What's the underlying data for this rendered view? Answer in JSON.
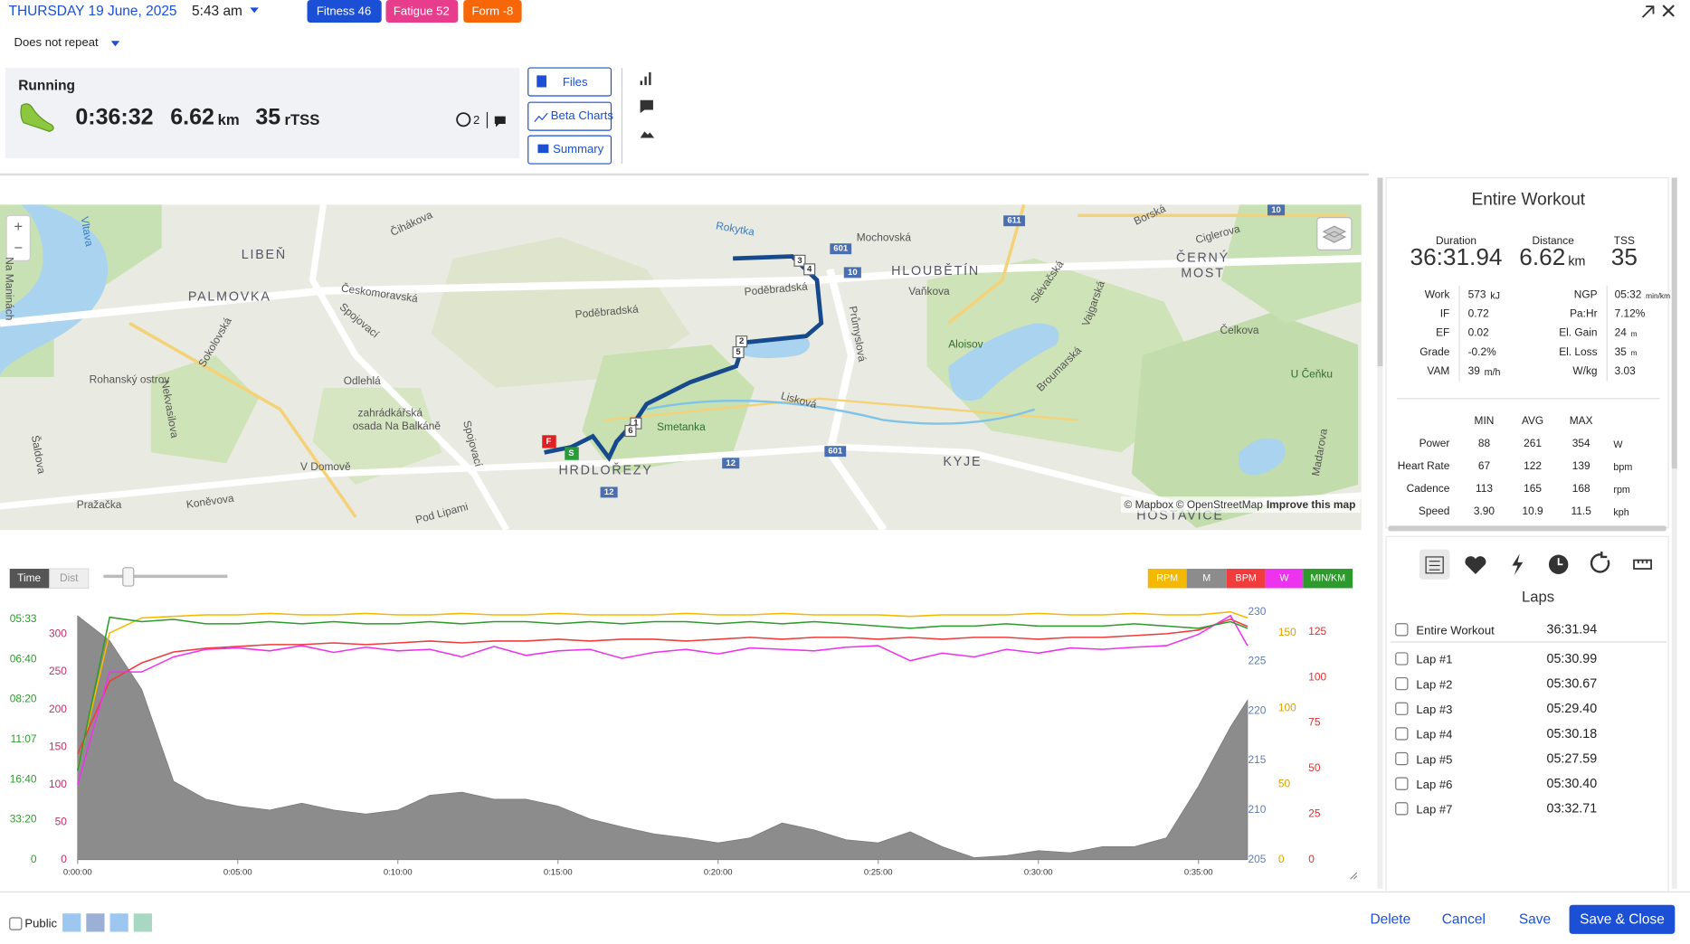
{
  "header": {
    "date": "THURSDAY 19 June, 2025",
    "time": "5:43 am",
    "badges": [
      "Fitness 46",
      "Fatigue 52",
      "Form -8"
    ],
    "repeat": "Does not repeat"
  },
  "summary": {
    "sport": "Running",
    "duration": "0:36:32",
    "distance": "6.62",
    "distance_unit": "km",
    "tss": "35",
    "tss_unit": "rTSS",
    "comments": "2"
  },
  "buttons": [
    "Files",
    "Beta Charts",
    "Summary"
  ],
  "map": {
    "labels": [
      "LIBEŇ",
      "PALMOVKA",
      "HLOUBĚTÍN",
      "ČERNÝ",
      "MOST",
      "HRDLOŘEZY",
      "KYJE",
      "HOSTAVICE",
      "Rohanský ostrov",
      "zahrádkářská",
      "osada Na Balkáně",
      "Smetanka",
      "Aloisov",
      "U Čeňku",
      "Českomoravská",
      "Poděbradská",
      "Poděbradská",
      "Spojovací",
      "Sokolovská",
      "Odlehlá",
      "Lisková",
      "Průmyslová",
      "Mochovská",
      "Vaňkova",
      "Slévačská",
      "Vajgarská",
      "Broumarská",
      "Čelkova",
      "Ciglerova",
      "Borská",
      "Rokytka",
      "Vltava",
      "V Domově",
      "Koněvova",
      "Pražačka",
      "Spojovací",
      "Pod Lipami",
      "Čihákova",
      "Madarova",
      "Na Maninách",
      "Šaldova",
      "Nekvasilova",
      "601",
      "10",
      "12",
      "611",
      "10",
      "12",
      "601"
    ],
    "markers": [
      "3",
      "4",
      "2",
      "5",
      "1",
      "6",
      "F",
      "S"
    ],
    "zoom": [
      "+",
      "−"
    ],
    "attribution": [
      "© Mapbox",
      "© OpenStreetMap",
      "Improve this map"
    ]
  },
  "chart_controls": {
    "toggle": [
      "Time",
      "Dist"
    ]
  },
  "chart_data": {
    "type": "line",
    "x": [
      0,
      60,
      120,
      180,
      240,
      300,
      360,
      420,
      480,
      540,
      600,
      660,
      720,
      780,
      840,
      900,
      960,
      1020,
      1080,
      1140,
      1200,
      1260,
      1320,
      1380,
      1440,
      1500,
      1560,
      1620,
      1680,
      1740,
      1800,
      1860,
      1920,
      1980,
      2040,
      2100,
      2160,
      2192
    ],
    "xlim": [
      0,
      2192
    ],
    "xticks": [
      {
        "value": 0,
        "label": "0:00:00"
      },
      {
        "value": 300,
        "label": "0:05:00"
      },
      {
        "value": 600,
        "label": "0:10:00"
      },
      {
        "value": 900,
        "label": "0:15:00"
      },
      {
        "value": 1200,
        "label": "0:20:00"
      },
      {
        "value": 1500,
        "label": "0:25:00"
      },
      {
        "value": 1800,
        "label": "0:30:00"
      },
      {
        "value": 2100,
        "label": "0:35:00"
      }
    ],
    "series": [
      {
        "name": "RPM",
        "color": "#f5b800",
        "ylim": [
          0,
          164
        ],
        "yticks": [
          0,
          50,
          100,
          150
        ],
        "values": [
          60,
          150,
          160,
          161,
          162,
          162,
          163,
          162,
          162,
          163,
          162,
          162,
          163,
          162,
          162,
          163,
          162,
          162,
          162,
          163,
          162,
          162,
          163,
          162,
          162,
          162,
          161,
          162,
          162,
          162,
          163,
          162,
          162,
          163,
          162,
          162,
          164,
          160
        ]
      },
      {
        "name": "M",
        "color": "#8c8c8c",
        "fill": true,
        "ylim": [
          205,
          230
        ],
        "yticks": [
          205,
          210,
          215,
          220,
          225,
          230
        ],
        "values": [
          229.6,
          227.1,
          222.2,
          212.9,
          211.1,
          210.4,
          210.0,
          210.7,
          210.0,
          209.6,
          210.0,
          211.5,
          211.8,
          211.1,
          211.1,
          210.4,
          209.1,
          208.3,
          207.6,
          207.2,
          206.7,
          207.2,
          208.7,
          208.0,
          207.0,
          206.7,
          207.8,
          206.3,
          205.2,
          205.4,
          205.9,
          205.7,
          206.3,
          206.3,
          207.2,
          212.4,
          218.4,
          221.1
        ]
      },
      {
        "name": "BPM",
        "color": "#f03c3c",
        "ylim": [
          0,
          136
        ],
        "yticks": [
          0,
          25,
          50,
          75,
          100,
          125
        ],
        "values": [
          58,
          98,
          108,
          114,
          116,
          117,
          118,
          118,
          119,
          118,
          119,
          120,
          119,
          120,
          120,
          121,
          120,
          121,
          121,
          120,
          121,
          122,
          121,
          122,
          122,
          121,
          122,
          121,
          122,
          122,
          121,
          122,
          122,
          123,
          124,
          126,
          132,
          128
        ]
      },
      {
        "name": "W",
        "color": "#ee33ee",
        "ylim": [
          0,
          330
        ],
        "yticks": [
          0,
          50,
          100,
          150,
          200,
          250,
          300
        ],
        "values": [
          100,
          250,
          250,
          270,
          280,
          282,
          278,
          285,
          276,
          283,
          278,
          280,
          270,
          284,
          272,
          278,
          280,
          268,
          276,
          280,
          274,
          282,
          280,
          278,
          283,
          285,
          265,
          275,
          270,
          280,
          275,
          282,
          280,
          283,
          285,
          300,
          325,
          285
        ]
      },
      {
        "name": "MIN/KM",
        "color": "#2e9a2e",
        "ylim": [
          0,
          11.14
        ],
        "yticks": [
          {
            "value": 10.8,
            "label": "05:33"
          },
          {
            "value": 9,
            "label": "06:40"
          },
          {
            "value": 7.2,
            "label": "08:20"
          },
          {
            "value": 5.4,
            "label": "11:07"
          },
          {
            "value": 3.6,
            "label": "16:40"
          },
          {
            "value": 1.8,
            "label": "33:20"
          },
          0
        ],
        "values": [
          4.0,
          10.9,
          10.7,
          10.8,
          10.6,
          10.6,
          10.7,
          10.6,
          10.7,
          10.6,
          10.6,
          10.7,
          10.6,
          10.7,
          10.7,
          10.6,
          10.7,
          10.6,
          10.7,
          10.7,
          10.6,
          10.7,
          10.6,
          10.7,
          10.6,
          10.5,
          10.4,
          10.5,
          10.5,
          10.6,
          10.5,
          10.5,
          10.5,
          10.6,
          10.5,
          10.4,
          10.7,
          10.4
        ]
      }
    ]
  },
  "stats": {
    "title": "Entire Workout",
    "headline": [
      {
        "label": "Duration",
        "value": "36:31.94"
      },
      {
        "label": "Distance",
        "value": "6.62",
        "unit": "km"
      },
      {
        "label": "TSS",
        "value": "35"
      }
    ],
    "left": [
      {
        "label": "Work",
        "value": "573",
        "unit": "kJ"
      },
      {
        "label": "IF",
        "value": "0.72"
      },
      {
        "label": "EF",
        "value": "0.02"
      },
      {
        "label": "Grade",
        "value": "-0.2%"
      },
      {
        "label": "VAM",
        "value": "39",
        "unit": "m/h"
      }
    ],
    "right": [
      {
        "label": "NGP",
        "value": "05:32",
        "unit": "min/km"
      },
      {
        "label": "Pa:Hr",
        "value": "7.12%"
      },
      {
        "label": "El. Gain",
        "value": "24",
        "unit": "m"
      },
      {
        "label": "El. Loss",
        "value": "35",
        "unit": "m"
      },
      {
        "label": "W/kg",
        "value": "3.03"
      }
    ],
    "range_header": [
      "MIN",
      "AVG",
      "MAX"
    ],
    "range_rows": [
      {
        "label": "Power",
        "values": [
          "88",
          "261",
          "354"
        ],
        "unit": "W"
      },
      {
        "label": "Heart Rate",
        "values": [
          "67",
          "122",
          "139"
        ],
        "unit": "bpm"
      },
      {
        "label": "Cadence",
        "values": [
          "113",
          "165",
          "168"
        ],
        "unit": "rpm"
      },
      {
        "label": "Speed",
        "values": [
          "3.90",
          "10.9",
          "11.5"
        ],
        "unit": "kph"
      }
    ]
  },
  "laps": {
    "title": "Laps",
    "rows": [
      [
        "Entire Workout",
        "36:31.94"
      ],
      [
        "Lap #1",
        "05:30.99"
      ],
      [
        "Lap #2",
        "05:30.67"
      ],
      [
        "Lap #3",
        "05:29.40"
      ],
      [
        "Lap #4",
        "05:30.18"
      ],
      [
        "Lap #5",
        "05:27.59"
      ],
      [
        "Lap #6",
        "05:30.40"
      ],
      [
        "Lap #7",
        "03:32.71"
      ]
    ]
  },
  "footer": {
    "public": "Public",
    "actions": [
      "Delete",
      "Cancel",
      "Save",
      "Save & Close"
    ]
  }
}
